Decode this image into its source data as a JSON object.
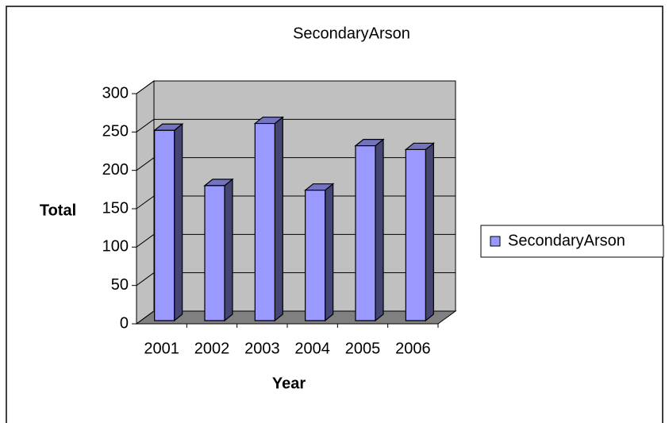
{
  "chart_data": {
    "type": "bar3d",
    "title": "SecondaryArson",
    "x_label": "Year",
    "y_label": "Total",
    "categories": [
      "2001",
      "2002",
      "2003",
      "2004",
      "2005",
      "2006"
    ],
    "series": [
      {
        "name": "SecondaryArson",
        "color": "#9999ff",
        "values": [
          248,
          176,
          257,
          170,
          228,
          223
        ]
      }
    ],
    "ylim": [
      0,
      300
    ],
    "yticks": [
      0,
      50,
      100,
      150,
      200,
      250,
      300
    ],
    "grid": true,
    "legend": "right"
  }
}
